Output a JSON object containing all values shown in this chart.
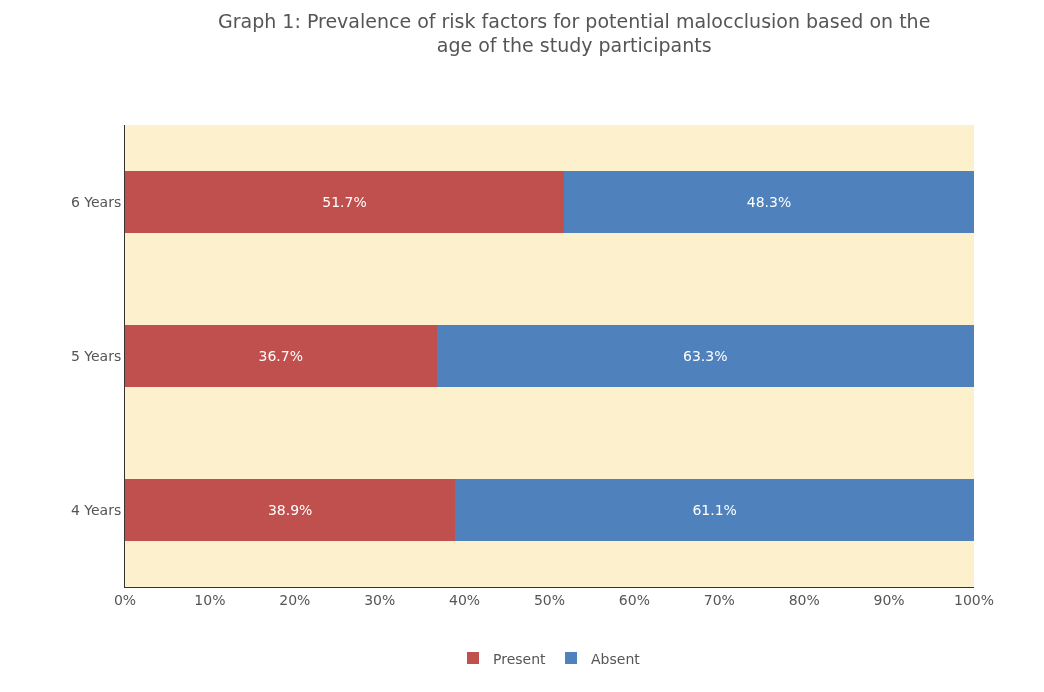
{
  "chart_data": {
    "type": "bar",
    "title": "Graph 1: Prevalence of risk factors for potential malocclusion based on the age of the study participants",
    "orientation": "horizontal",
    "stacked": true,
    "categories": [
      "6 Years",
      "5 Years",
      "4 Years"
    ],
    "series": [
      {
        "name": "Present",
        "color": "#c0504d",
        "values": [
          51.7,
          36.7,
          38.9
        ],
        "value_labels": [
          "51.7%",
          "36.7%",
          "38.9%"
        ]
      },
      {
        "name": "Absent",
        "color": "#4f81bd",
        "values": [
          48.3,
          63.3,
          61.1
        ],
        "value_labels": [
          "48.3%",
          "63.3%",
          "61.1%"
        ]
      }
    ],
    "xlim": [
      0,
      100
    ],
    "xticks": [
      {
        "value": 0,
        "label": "0%"
      },
      {
        "value": 10,
        "label": "10%"
      },
      {
        "value": 20,
        "label": "20%"
      },
      {
        "value": 30,
        "label": "30%"
      },
      {
        "value": 40,
        "label": "40%"
      },
      {
        "value": 50,
        "label": "50%"
      },
      {
        "value": 60,
        "label": "60%"
      },
      {
        "value": 70,
        "label": "70%"
      },
      {
        "value": 80,
        "label": "80%"
      },
      {
        "value": 90,
        "label": "90%"
      },
      {
        "value": 100,
        "label": "100%"
      }
    ],
    "grid": false,
    "legend": "bottom"
  }
}
